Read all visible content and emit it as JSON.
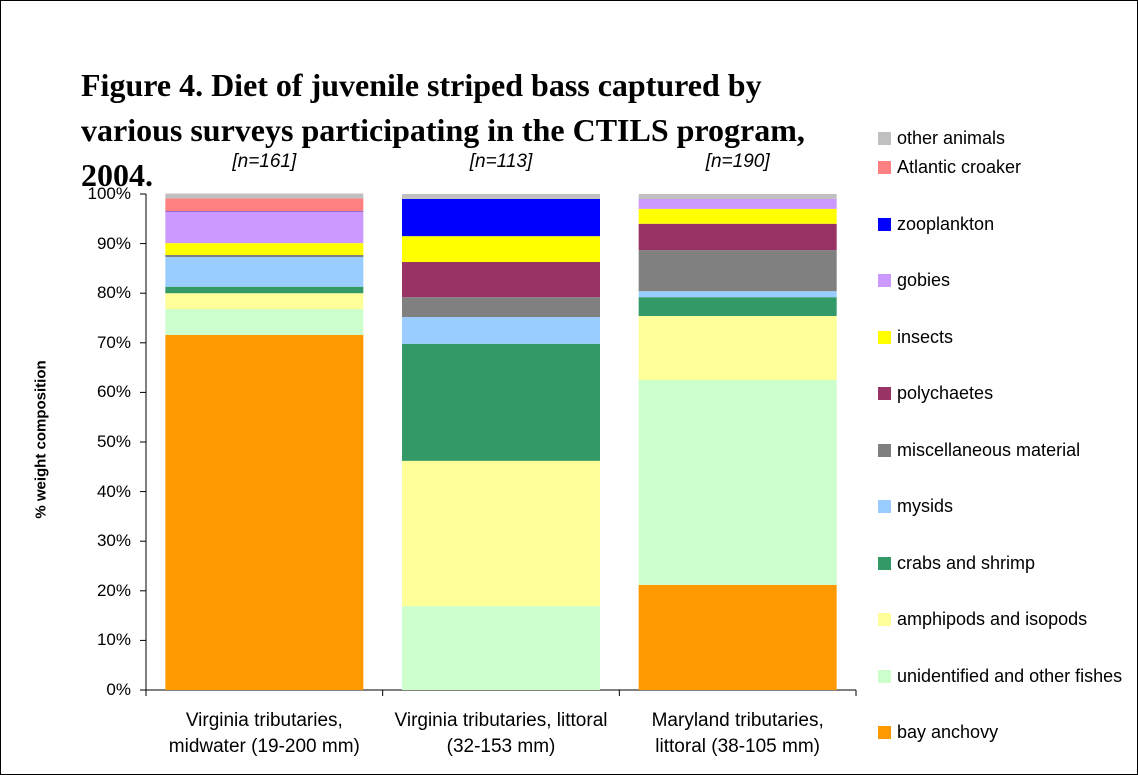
{
  "chart_data": {
    "type": "stacked_bar",
    "title": "Figure 4.  Diet of juvenile striped bass captured by various surveys participating in the CTILS program, 2004.",
    "ylabel": "% weight composition",
    "categories": [
      "Virginia tributaries, midwater (19-200 mm)",
      "Virginia tributaries, littoral (32-153 mm)",
      "Maryland tributaries, littoral (38-105 mm)"
    ],
    "annotations": [
      "[n=161]",
      "[n=113]",
      "[n=190]"
    ],
    "ylim": [
      0,
      100
    ],
    "yticks": [
      {
        "value": 0,
        "label": "0%"
      },
      {
        "value": 10,
        "label": "10%"
      },
      {
        "value": 20,
        "label": "20%"
      },
      {
        "value": 30,
        "label": "30%"
      },
      {
        "value": 40,
        "label": "40%"
      },
      {
        "value": 50,
        "label": "50%"
      },
      {
        "value": 60,
        "label": "60%"
      },
      {
        "value": 70,
        "label": "70%"
      },
      {
        "value": 80,
        "label": "80%"
      },
      {
        "value": 90,
        "label": "90%"
      },
      {
        "value": 100,
        "label": "100%"
      }
    ],
    "series": [
      {
        "name": "bay anchovy",
        "color": "#ff9900",
        "values": [
          71.6,
          0,
          21.2
        ]
      },
      {
        "name": "unidentified and other fishes",
        "color": "#ccffcc",
        "values": [
          5.2,
          16.9,
          41.3
        ]
      },
      {
        "name": "amphipods and isopods",
        "color": "#ffff99",
        "values": [
          3.2,
          29.3,
          12.9
        ]
      },
      {
        "name": "crabs and shrimp",
        "color": "#339966",
        "values": [
          1.3,
          23.6,
          3.8
        ]
      },
      {
        "name": "mysids",
        "color": "#99ccff",
        "values": [
          6.0,
          5.4,
          1.2
        ]
      },
      {
        "name": "miscellaneous material",
        "color": "#808080",
        "values": [
          0.4,
          4.0,
          8.3
        ]
      },
      {
        "name": "polychaetes",
        "color": "#993366",
        "values": [
          0,
          7.1,
          5.3
        ]
      },
      {
        "name": "insects",
        "color": "#ffff00",
        "values": [
          2.4,
          5.2,
          3.0
        ]
      },
      {
        "name": "gobies",
        "color": "#cc99ff",
        "values": [
          6.3,
          0,
          2.0
        ]
      },
      {
        "name": "zooplankton",
        "color": "#0000ff",
        "values": [
          0.1,
          7.5,
          0
        ]
      },
      {
        "name": "Atlantic croaker",
        "color": "#ff8080",
        "values": [
          2.6,
          0,
          0
        ]
      },
      {
        "name": "other animals",
        "color": "#c0c0c0",
        "values": [
          1.0,
          1.0,
          1.0
        ]
      }
    ]
  }
}
